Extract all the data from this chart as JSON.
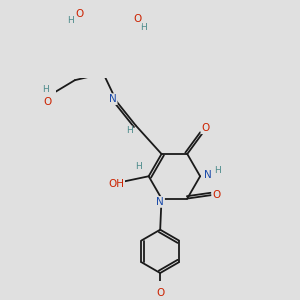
{
  "bg_color": "#e0e0e0",
  "bond_color": "#1a1a1a",
  "bond_width": 1.3,
  "atom_colors": {
    "N": "#1a4aaa",
    "O": "#cc2200",
    "H": "#4a8a8a",
    "C": "#1a1a1a"
  },
  "font_size_atom": 7.5,
  "font_size_h": 6.5
}
